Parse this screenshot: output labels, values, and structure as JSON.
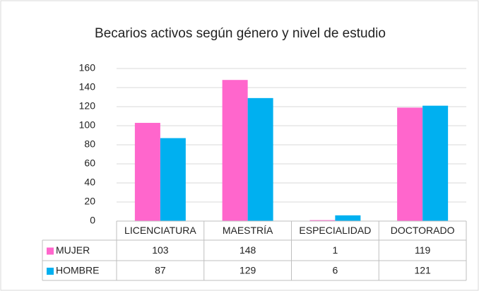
{
  "chart_data": {
    "type": "bar",
    "title": "Becarios activos según género y nivel de estudio",
    "categories": [
      "LICENCIATURA",
      "MAESTRÍA",
      "ESPECIALIDAD",
      "DOCTORADO"
    ],
    "series": [
      {
        "name": "MUJER",
        "color": "#ff66cc",
        "values": [
          103,
          148,
          1,
          119
        ]
      },
      {
        "name": "HOMBRE",
        "color": "#00b0f0",
        "values": [
          87,
          129,
          6,
          121
        ]
      }
    ],
    "ylim": [
      0,
      160
    ],
    "yticks": [
      0,
      20,
      40,
      60,
      80,
      100,
      120,
      140,
      160
    ],
    "grid": true
  }
}
